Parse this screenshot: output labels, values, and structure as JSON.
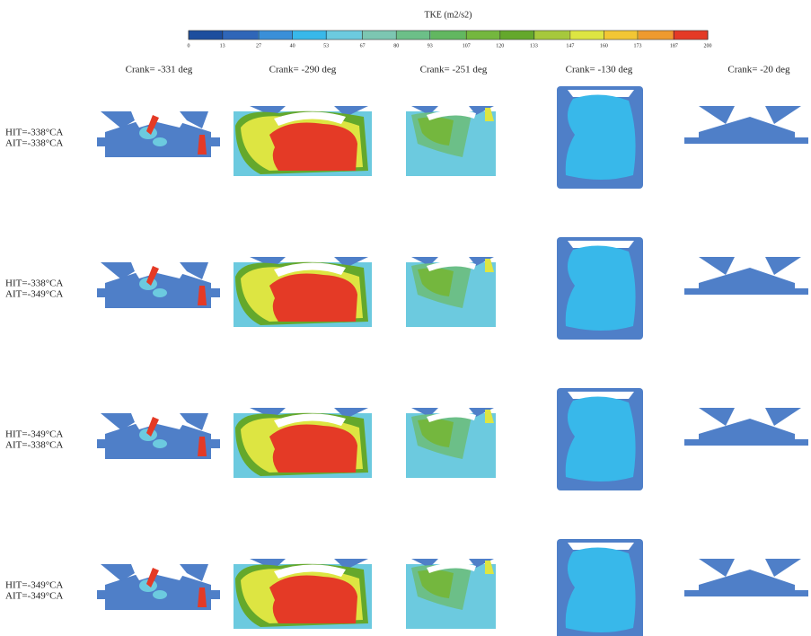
{
  "colorbar": {
    "title": "TKE (m2/s2)",
    "ticks": [
      0,
      13,
      27,
      40,
      53,
      67,
      80,
      93,
      107,
      120,
      133,
      147,
      160,
      173,
      187,
      200
    ],
    "colors": [
      "#1d4e9e",
      "#2f66b8",
      "#3a8fd8",
      "#38b8ea",
      "#6ccadf",
      "#7cc6b2",
      "#6cbf88",
      "#62b760",
      "#74b73e",
      "#64a82c",
      "#a6c83c",
      "#dde542",
      "#f2c634",
      "#ee9a2e",
      "#e43a26"
    ]
  },
  "columns": [
    "Crank= -331 deg",
    "Crank= -290 deg",
    "Crank= -251 deg",
    "Crank= -130 deg",
    "Crank=  -20 deg"
  ],
  "rows": [
    {
      "hit": "HIT=-338°CA",
      "ait": "AIT=-338°CA"
    },
    {
      "hit": "HIT=-338°CA",
      "ait": "AIT=-349°CA"
    },
    {
      "hit": "HIT=-349°CA",
      "ait": "AIT=-338°CA"
    },
    {
      "hit": "HIT=-349°CA",
      "ait": "AIT=-349°CA"
    }
  ]
}
